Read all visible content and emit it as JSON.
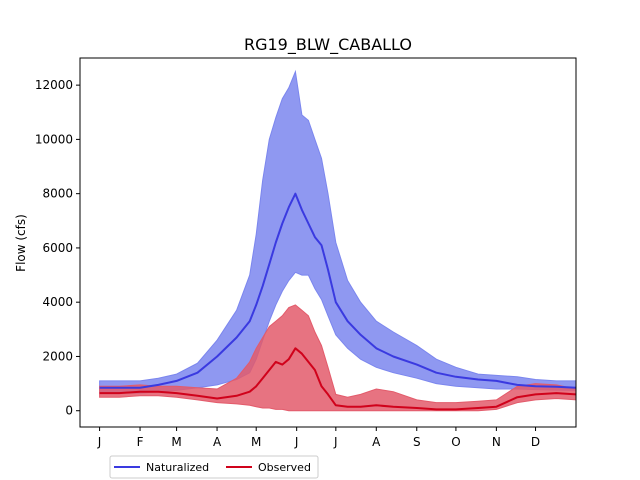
{
  "chart_data": {
    "type": "area",
    "title": "RG19_BLW_CABALLO",
    "xlabel": "",
    "ylabel": "Flow (cfs)",
    "xlim": [
      -15,
      365
    ],
    "ylim": [
      -600,
      13000
    ],
    "x_ticks": [
      {
        "label": "J",
        "value": 0
      },
      {
        "label": "F",
        "value": 31
      },
      {
        "label": "M",
        "value": 59
      },
      {
        "label": "A",
        "value": 90
      },
      {
        "label": "M",
        "value": 120
      },
      {
        "label": "J",
        "value": 151
      },
      {
        "label": "J",
        "value": 181
      },
      {
        "label": "A",
        "value": 212
      },
      {
        "label": "S",
        "value": 243
      },
      {
        "label": "O",
        "value": 273
      },
      {
        "label": "N",
        "value": 304
      },
      {
        "label": "D",
        "value": 334
      }
    ],
    "y_ticks": [
      0,
      2000,
      4000,
      6000,
      8000,
      10000,
      12000
    ],
    "x": [
      0,
      15,
      31,
      45,
      59,
      75,
      90,
      105,
      115,
      120,
      125,
      130,
      135,
      140,
      145,
      150,
      155,
      160,
      165,
      170,
      175,
      181,
      190,
      200,
      212,
      225,
      243,
      258,
      273,
      290,
      304,
      320,
      334,
      350,
      365
    ],
    "series": [
      {
        "name": "Naturalized",
        "color": "#3a3ae0",
        "band_color": "#7b86ee",
        "median": [
          850,
          850,
          850,
          950,
          1100,
          1400,
          2000,
          2700,
          3300,
          3900,
          4600,
          5400,
          6200,
          6900,
          7500,
          8000,
          7400,
          6900,
          6400,
          6100,
          5200,
          4000,
          3300,
          2800,
          2300,
          2000,
          1700,
          1400,
          1250,
          1150,
          1100,
          950,
          900,
          880,
          850
        ],
        "lower": [
          650,
          650,
          650,
          700,
          750,
          850,
          950,
          1150,
          1400,
          1900,
          2600,
          3300,
          3900,
          4400,
          4800,
          5100,
          5000,
          5000,
          4500,
          4100,
          3500,
          2800,
          2300,
          1900,
          1600,
          1400,
          1200,
          1000,
          900,
          850,
          800,
          800,
          780,
          760,
          750
        ],
        "upper": [
          1100,
          1100,
          1100,
          1200,
          1350,
          1750,
          2600,
          3700,
          5000,
          6500,
          8500,
          10000,
          10800,
          11500,
          11900,
          12500,
          10900,
          10700,
          10000,
          9300,
          8000,
          6200,
          4800,
          4000,
          3300,
          2900,
          2400,
          1900,
          1600,
          1350,
          1300,
          1250,
          1150,
          1100,
          1100
        ]
      },
      {
        "name": "Observed",
        "color": "#d0021b",
        "band_color": "#e35b6b",
        "median": [
          650,
          650,
          700,
          700,
          650,
          550,
          450,
          550,
          700,
          900,
          1200,
          1500,
          1800,
          1700,
          1900,
          2300,
          2100,
          1800,
          1500,
          900,
          600,
          200,
          150,
          150,
          200,
          150,
          100,
          50,
          50,
          100,
          150,
          500,
          600,
          650,
          600
        ],
        "lower": [
          500,
          500,
          550,
          550,
          500,
          400,
          300,
          250,
          200,
          150,
          100,
          100,
          50,
          50,
          0,
          0,
          0,
          0,
          0,
          0,
          0,
          0,
          0,
          0,
          0,
          0,
          0,
          0,
          0,
          0,
          50,
          300,
          400,
          450,
          400
        ],
        "upper": [
          900,
          900,
          950,
          900,
          900,
          850,
          800,
          1200,
          1800,
          2300,
          2700,
          3100,
          3300,
          3500,
          3800,
          3900,
          3700,
          3500,
          2900,
          2400,
          1600,
          600,
          500,
          600,
          800,
          700,
          400,
          300,
          300,
          350,
          400,
          900,
          1000,
          950,
          800
        ]
      }
    ],
    "legend": {
      "placement": "bottom-left",
      "entries": [
        "Naturalized",
        "Observed"
      ]
    },
    "grid": false
  }
}
